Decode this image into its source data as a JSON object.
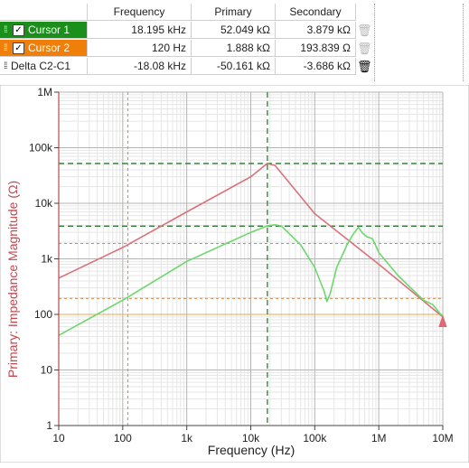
{
  "table": {
    "headers": [
      "Frequency",
      "Primary",
      "Secondary"
    ],
    "rows": [
      {
        "name": "Cursor 1",
        "frequency": "18.195 kHz",
        "primary": "52.049 kΩ",
        "secondary": "3.879 kΩ",
        "checked": true
      },
      {
        "name": "Cursor 2",
        "frequency": "120 Hz",
        "primary": "1.888 kΩ",
        "secondary": "193.839 Ω",
        "checked": true
      },
      {
        "name": "Delta C2-C1",
        "frequency": "-18.08 kHz",
        "primary": "-50.161 kΩ",
        "secondary": "-3.686 kΩ"
      }
    ],
    "check_mark": "✓",
    "trash_icon": "trash-icon"
  },
  "chart_data": {
    "type": "line",
    "xlabel": "Frequency (Hz)",
    "ylabel": "Primary: Impedance Magnitude (Ω)",
    "x_scale": "log",
    "y_scale": "log",
    "xlim": [
      10,
      10000000
    ],
    "ylim": [
      1,
      1000000
    ],
    "x_tick_labels": [
      "10",
      "100",
      "1k",
      "10k",
      "100k",
      "1M",
      "10M"
    ],
    "y_tick_labels": [
      "1",
      "10",
      "100",
      "1k",
      "10k",
      "100k",
      "1M"
    ],
    "grid": true,
    "series": [
      {
        "color": "#d9727a",
        "points": [
          [
            10,
            450
          ],
          [
            100,
            1600
          ],
          [
            1000,
            7000
          ],
          [
            10000,
            30000
          ],
          [
            18000,
            52000
          ],
          [
            24000,
            48000
          ],
          [
            100000,
            6500
          ],
          [
            1000000,
            800
          ],
          [
            10000000,
            90
          ]
        ]
      },
      {
        "color": "#6cd86c",
        "points": [
          [
            10,
            42
          ],
          [
            100,
            180
          ],
          [
            1000,
            900
          ],
          [
            10000,
            3000
          ],
          [
            18000,
            3900
          ],
          [
            24000,
            4100
          ],
          [
            30000,
            3900
          ],
          [
            60000,
            1800
          ],
          [
            100000,
            700
          ],
          [
            140000,
            260
          ],
          [
            155000,
            170
          ],
          [
            175000,
            240
          ],
          [
            220000,
            700
          ],
          [
            320000,
            1800
          ],
          [
            400000,
            2800
          ],
          [
            480000,
            3700
          ],
          [
            560000,
            2900
          ],
          [
            650000,
            2500
          ],
          [
            800000,
            2300
          ],
          [
            1000000,
            1300
          ],
          [
            2000000,
            500
          ],
          [
            5000000,
            180
          ],
          [
            7000000,
            150
          ],
          [
            10000000,
            90
          ]
        ]
      }
    ],
    "cursors": [
      {
        "name": "Cursor 1",
        "color": "#2e7d32",
        "x": 18195,
        "primary_y": 52049,
        "secondary_y": 3879
      },
      {
        "name": "Cursor 2",
        "color": "#e8872a",
        "x": 120,
        "primary_y": 1888,
        "secondary_y": 193.839
      }
    ],
    "reference_lines": [
      {
        "y": 100,
        "color": "#e8a84a"
      }
    ],
    "axis_color": "#c0484f",
    "marker": {
      "x": 10000000,
      "y": 70,
      "color": "#e06a74"
    }
  }
}
